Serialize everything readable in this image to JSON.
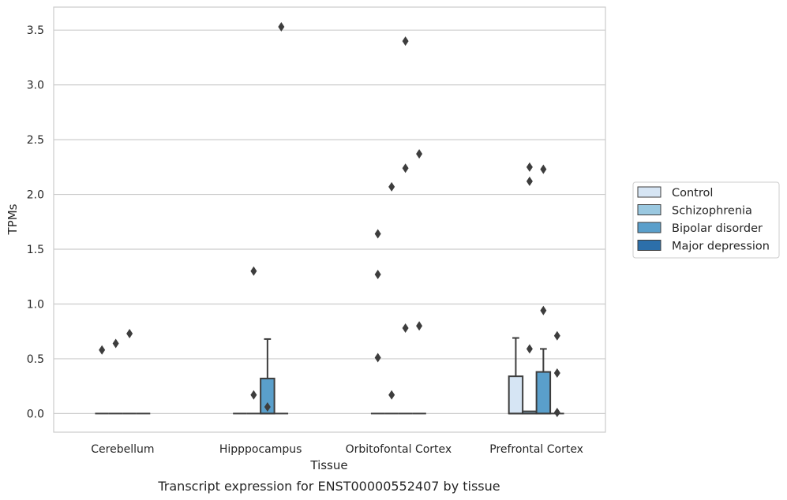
{
  "chart_data": {
    "type": "box",
    "caption": "Transcript expression for ENST00000552407 by tissue",
    "xlabel": "Tissue",
    "ylabel": "TPMs",
    "ylim": [
      -0.17,
      3.71
    ],
    "yticks": [
      "0.0",
      "0.5",
      "1.0",
      "1.5",
      "2.0",
      "2.5",
      "3.0",
      "3.5"
    ],
    "ytick_values": [
      0,
      0.5,
      1.0,
      1.5,
      2.0,
      2.5,
      3.0,
      3.5
    ],
    "grid": true,
    "legend_position": "right",
    "categories": [
      "Cerebellum",
      "Hipppocampus",
      "Orbitofontal Cortex",
      "Prefrontal Cortex"
    ],
    "series": [
      {
        "name": "Control",
        "color": "#d6e5f4",
        "boxes": [
          {
            "q1": 0,
            "median": 0,
            "q3": 0,
            "whisker_low": 0,
            "whisker_high": 0,
            "outliers": [
              0.58
            ]
          },
          {
            "q1": 0,
            "median": 0,
            "q3": 0,
            "whisker_low": 0,
            "whisker_high": 0,
            "outliers": []
          },
          {
            "q1": 0,
            "median": 0,
            "q3": 0,
            "whisker_low": 0,
            "whisker_high": 0,
            "outliers": [
              1.64,
              1.27,
              0.51
            ]
          },
          {
            "q1": 0,
            "median": 0,
            "q3": 0.34,
            "whisker_low": 0,
            "whisker_high": 0.69,
            "outliers": []
          }
        ]
      },
      {
        "name": "Schizophrenia",
        "color": "#9ac8e0",
        "boxes": [
          {
            "q1": 0,
            "median": 0,
            "q3": 0,
            "whisker_low": 0,
            "whisker_high": 0,
            "outliers": [
              0.64
            ]
          },
          {
            "q1": 0,
            "median": 0,
            "q3": 0,
            "whisker_low": 0,
            "whisker_high": 0,
            "outliers": [
              0.17,
              1.3
            ]
          },
          {
            "q1": 0,
            "median": 0,
            "q3": 0,
            "whisker_low": 0,
            "whisker_high": 0,
            "outliers": [
              2.07,
              0.17
            ]
          },
          {
            "q1": 0,
            "median": 0,
            "q3": 0.02,
            "whisker_low": 0,
            "whisker_high": 0.02,
            "outliers": [
              2.25,
              2.12,
              0.59
            ]
          }
        ]
      },
      {
        "name": "Bipolar disorder",
        "color": "#5a9fcb",
        "boxes": [
          {
            "q1": 0,
            "median": 0,
            "q3": 0,
            "whisker_low": 0,
            "whisker_high": 0,
            "outliers": [
              0.73
            ]
          },
          {
            "q1": 0,
            "median": 0,
            "q3": 0.32,
            "whisker_low": 0,
            "whisker_high": 0.68,
            "outliers": [
              0.06
            ]
          },
          {
            "q1": 0,
            "median": 0,
            "q3": 0,
            "whisker_low": 0,
            "whisker_high": 0,
            "outliers": [
              3.4,
              2.24,
              0.78
            ]
          },
          {
            "q1": 0,
            "median": 0,
            "q3": 0.38,
            "whisker_low": 0,
            "whisker_high": 0.59,
            "outliers": [
              2.23,
              0.94
            ]
          }
        ]
      },
      {
        "name": "Major depression",
        "color": "#2c6faa",
        "boxes": [
          {
            "q1": 0,
            "median": 0,
            "q3": 0,
            "whisker_low": 0,
            "whisker_high": 0,
            "outliers": []
          },
          {
            "q1": 0,
            "median": 0,
            "q3": 0,
            "whisker_low": 0,
            "whisker_high": 0,
            "outliers": [
              3.53
            ]
          },
          {
            "q1": 0,
            "median": 0,
            "q3": 0,
            "whisker_low": 0,
            "whisker_high": 0,
            "outliers": [
              2.37,
              0.8
            ]
          },
          {
            "q1": 0,
            "median": 0,
            "q3": 0,
            "whisker_low": 0,
            "whisker_high": 0,
            "outliers": [
              0.71,
              0.37,
              0.01
            ]
          }
        ]
      }
    ]
  }
}
